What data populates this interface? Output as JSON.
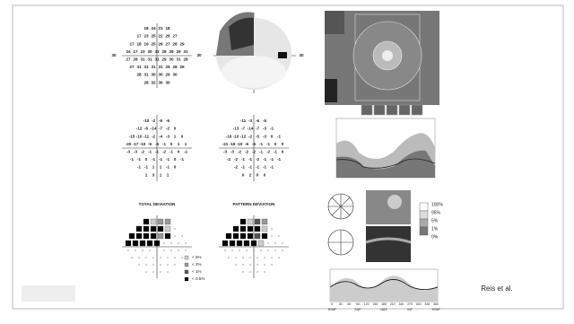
{
  "threshold": {
    "rows": [
      [
        18,
        24,
        21,
        18
      ],
      [
        17,
        23,
        25,
        22,
        26,
        27
      ],
      [
        17,
        18,
        19,
        25,
        26,
        27,
        28,
        29
      ],
      [
        24,
        17,
        23,
        30,
        31,
        28,
        28,
        29,
        31
      ],
      [
        27,
        28,
        31,
        31,
        31,
        29,
        30,
        31,
        28
      ],
      [
        27,
        31,
        31,
        31,
        31,
        29,
        28,
        29
      ],
      [
        28,
        31,
        30,
        30,
        29,
        30
      ],
      [
        28,
        32,
        30,
        30
      ]
    ],
    "axis_label": "30"
  },
  "total_deviation": {
    "title": "TOTAL DEVIATION",
    "rows": [
      [
        -10,
        -2,
        -6,
        -6
      ],
      [
        -12,
        -6,
        -14,
        -7,
        -2,
        0
      ],
      [
        -15,
        -10,
        -11,
        -2,
        -4,
        -3,
        1,
        0
      ],
      [
        -20,
        -17,
        -10,
        -5,
        -6,
        -1,
        0,
        1,
        1
      ],
      [
        -3,
        -3,
        -2,
        -1,
        -1,
        -2,
        -1,
        0,
        -1
      ],
      [
        -1,
        -1,
        0,
        -1,
        -1,
        -1,
        0,
        -1
      ],
      [
        -1,
        -1,
        1,
        1,
        -1,
        0
      ],
      [
        1,
        3,
        1,
        1
      ]
    ],
    "symbols": [
      [
        4,
        1,
        2,
        2
      ],
      [
        4,
        4,
        4,
        4,
        1,
        0
      ],
      [
        4,
        4,
        4,
        4,
        2,
        4,
        0,
        0
      ],
      [
        4,
        4,
        4,
        4,
        4,
        0,
        0,
        0,
        0
      ],
      [
        0,
        0,
        0,
        0,
        0,
        0,
        0,
        0,
        0
      ],
      [
        0,
        0,
        0,
        0,
        0,
        0,
        0,
        0
      ],
      [
        0,
        0,
        0,
        0,
        0,
        0
      ],
      [
        0,
        0,
        0,
        0
      ]
    ]
  },
  "pattern_deviation": {
    "title": "PATTERN DEVIATION",
    "rows": [
      [
        -11,
        -3,
        -6,
        -5
      ],
      [
        -13,
        -7,
        -14,
        -7,
        -3,
        -1
      ],
      [
        -16,
        -10,
        -12,
        -2,
        -5,
        -3,
        0,
        -1
      ],
      [
        -21,
        -18,
        -10,
        -6,
        -6,
        -1,
        -1,
        0,
        0
      ],
      [
        -3,
        -3,
        -2,
        -2,
        -2,
        -1,
        -2,
        -1,
        0
      ],
      [
        -2,
        -2,
        -1,
        -1,
        -2,
        -1,
        -1,
        -1
      ],
      [
        -2,
        -1,
        -1,
        -1,
        -1,
        -1
      ],
      [
        0,
        2,
        0,
        0
      ]
    ],
    "symbols": [
      [
        4,
        1,
        3,
        2
      ],
      [
        4,
        4,
        4,
        4,
        1,
        0
      ],
      [
        4,
        4,
        4,
        4,
        3,
        4,
        0,
        0
      ],
      [
        4,
        4,
        4,
        4,
        4,
        1,
        0,
        0,
        0
      ],
      [
        0,
        0,
        0,
        0,
        0,
        0,
        0,
        0,
        0
      ],
      [
        0,
        0,
        0,
        0,
        0,
        0,
        0,
        0
      ],
      [
        0,
        0,
        0,
        0,
        0,
        0
      ],
      [
        0,
        0,
        0,
        0
      ]
    ]
  },
  "legend": [
    "< 5%",
    "< 2%",
    "< 1%",
    "< 0.5%"
  ],
  "oct": {
    "colorbar": [
      "100%",
      "95%",
      "5%",
      "1%",
      "0%"
    ],
    "x_labels": [
      0,
      30,
      60,
      90,
      120,
      150,
      180,
      210,
      240,
      270,
      300,
      330,
      360
    ],
    "region_labels": [
      "TEMP",
      "SUP",
      "NAS",
      "INF",
      "TEMP"
    ]
  },
  "citation": "Reis et al."
}
